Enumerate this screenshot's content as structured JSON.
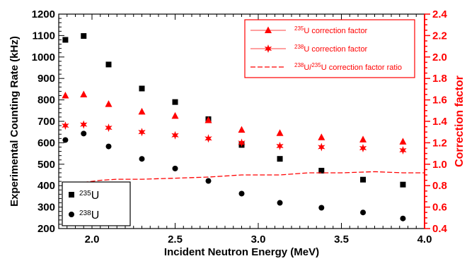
{
  "chart_data": {
    "type": "scatter",
    "xlabel": "Incident Neutron Energy (MeV)",
    "ylabel_left": "Experimental Counting Rate (kHz)",
    "ylabel_right": "Correction factor",
    "xlim": [
      1.8,
      4.0
    ],
    "ylim_left": [
      200,
      1200
    ],
    "ylim_right": [
      0.4,
      2.4
    ],
    "x_ticks": [
      "2.0",
      "2.5",
      "3.0",
      "3.5",
      "4.0"
    ],
    "y_left_ticks": [
      "200",
      "300",
      "400",
      "500",
      "600",
      "700",
      "800",
      "900",
      "1000",
      "1100",
      "1200"
    ],
    "y_right_ticks": [
      "0.4",
      "0.6",
      "0.8",
      "1.0",
      "1.2",
      "1.4",
      "1.6",
      "1.8",
      "2.0",
      "2.2",
      "2.4"
    ],
    "grid": false,
    "colors": {
      "counting": "#000000",
      "correction": "#ff0000"
    },
    "series": [
      {
        "name_sup": "235",
        "name_text": "U",
        "axis": "left",
        "marker": "square",
        "color": "#000000",
        "x": [
          1.84,
          1.95,
          2.1,
          2.3,
          2.5,
          2.7,
          2.9,
          3.13,
          3.38,
          3.63,
          3.87
        ],
        "y": [
          1080,
          1098,
          965,
          853,
          790,
          710,
          590,
          525,
          470,
          428,
          405
        ]
      },
      {
        "name_sup": "238",
        "name_text": "U",
        "axis": "left",
        "marker": "circle",
        "color": "#000000",
        "x": [
          1.84,
          1.95,
          2.1,
          2.3,
          2.5,
          2.7,
          2.9,
          3.13,
          3.38,
          3.63,
          3.87
        ],
        "y": [
          613,
          643,
          583,
          525,
          480,
          422,
          363,
          320,
          297,
          275,
          247
        ]
      },
      {
        "name_sup": "235",
        "name_text": "U correction factor",
        "axis": "right",
        "marker": "triangle",
        "color": "#ff0000",
        "x": [
          1.84,
          1.95,
          2.1,
          2.3,
          2.5,
          2.7,
          2.9,
          3.13,
          3.38,
          3.63,
          3.87
        ],
        "y": [
          1.64,
          1.65,
          1.56,
          1.49,
          1.45,
          1.41,
          1.32,
          1.29,
          1.25,
          1.23,
          1.21
        ]
      },
      {
        "name_sup": "238",
        "name_text": "U correction factor",
        "axis": "right",
        "marker": "star",
        "color": "#ff0000",
        "x": [
          1.84,
          1.95,
          2.1,
          2.3,
          2.5,
          2.7,
          2.9,
          3.13,
          3.38,
          3.63,
          3.87
        ],
        "y": [
          1.36,
          1.37,
          1.34,
          1.3,
          1.27,
          1.24,
          1.2,
          1.17,
          1.16,
          1.15,
          1.13
        ]
      },
      {
        "name_sup": "238",
        "name_mid": "U/",
        "name_sup2": "235",
        "name_text": "U correction factor ratio",
        "axis": "right",
        "marker": "dashed-line",
        "color": "#ff0000",
        "x": [
          1.82,
          1.95,
          2.05,
          2.15,
          2.3,
          2.5,
          2.7,
          2.9,
          3.13,
          3.3,
          3.5,
          3.7,
          3.87,
          4.0
        ],
        "y": [
          0.83,
          0.83,
          0.85,
          0.86,
          0.86,
          0.87,
          0.88,
          0.9,
          0.9,
          0.92,
          0.92,
          0.93,
          0.92,
          0.92
        ]
      }
    ],
    "legends": {
      "top_right": [
        2,
        3,
        4
      ],
      "bottom_left": [
        0,
        1
      ]
    }
  }
}
